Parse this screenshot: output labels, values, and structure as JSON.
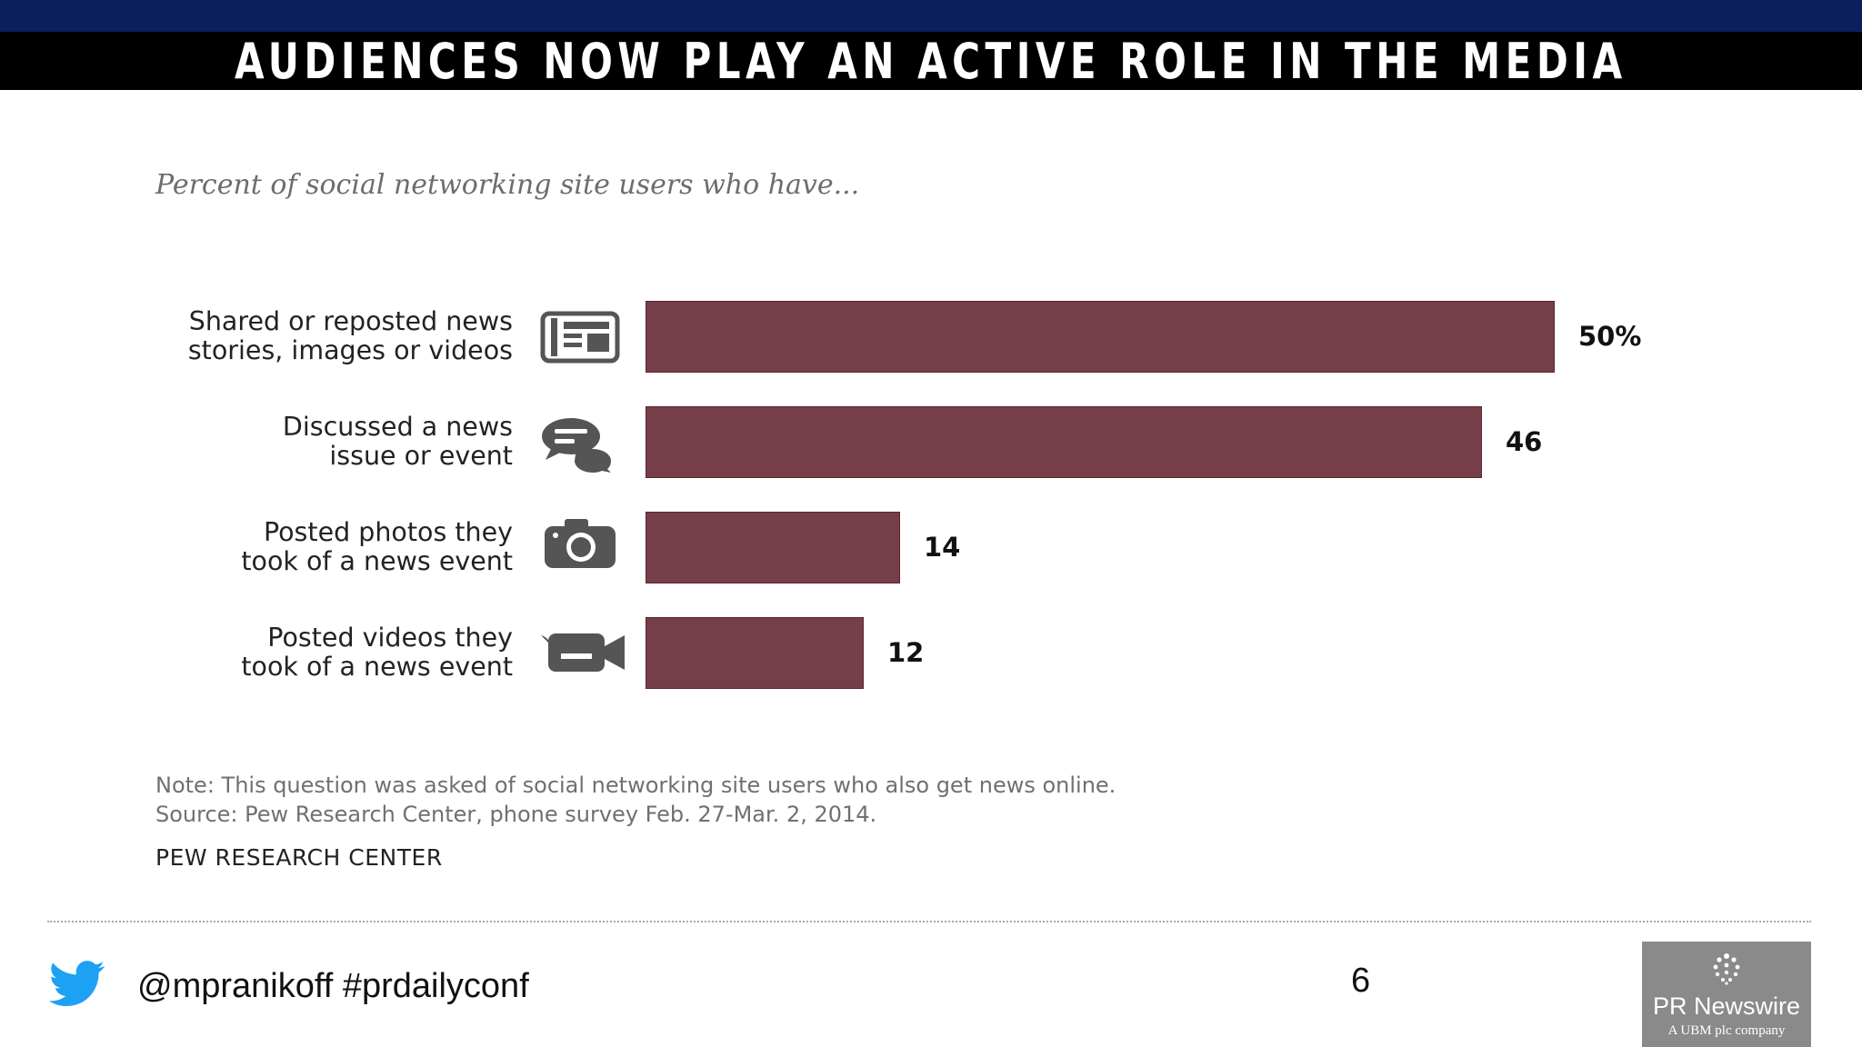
{
  "slide": {
    "title": "AUDIENCES NOW PLAY AN ACTIVE ROLE IN THE MEDIA",
    "page_number": "6"
  },
  "colors": {
    "top_band": "#0b1f5c",
    "title_bar": "#000000",
    "bar": "#763e48"
  },
  "chart_data": {
    "type": "bar",
    "orientation": "horizontal",
    "title": "Percent of social networking site users who have...",
    "categories": [
      [
        "Shared or reposted news",
        "stories, images or videos"
      ],
      [
        "Discussed a news",
        "issue or event"
      ],
      [
        "Posted photos they",
        "took of a news event"
      ],
      [
        "Posted videos they",
        "took of a news event"
      ]
    ],
    "icons": [
      "newspaper-icon",
      "speech-bubbles-icon",
      "camera-icon",
      "video-camera-icon"
    ],
    "values": [
      50,
      46,
      14,
      12
    ],
    "value_labels": [
      "50%",
      "46",
      "14",
      "12"
    ],
    "xlim": [
      0,
      50
    ],
    "grid": false,
    "legend": "none",
    "note": [
      "Note: This question was asked of social networking site users who also get news online.",
      "Source: Pew Research Center, phone survey Feb. 27-Mar. 2, 2014."
    ],
    "source_org": "PEW RESEARCH CENTER"
  },
  "footer": {
    "twitter_icon": "twitter-bird-icon",
    "handle_text": "@mpranikoff  #prdailyconf",
    "logo_name": "PR Newswire",
    "logo_sub": "A UBM plc company"
  }
}
